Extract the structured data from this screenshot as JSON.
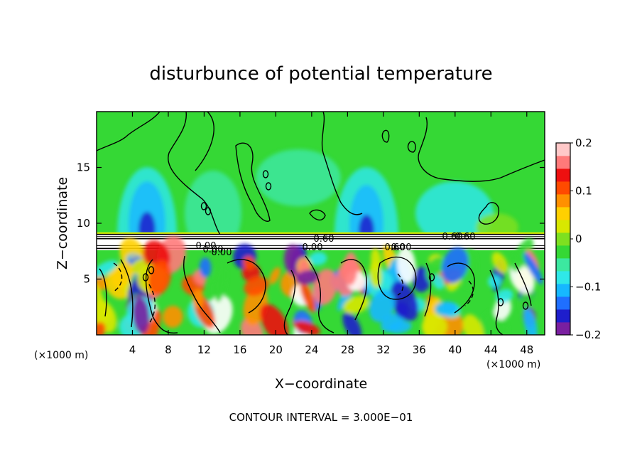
{
  "chart_data": {
    "type": "heatmap",
    "title": "disturbunce of potential temperature",
    "xlabel": "X−coordinate",
    "ylabel": "Z−coordinate",
    "x_unit_left": "(×1000 m)",
    "x_unit_right": "(×1000 m)",
    "xlim": [
      0,
      50
    ],
    "ylim": [
      0,
      20
    ],
    "x_ticks": [
      4,
      8,
      12,
      16,
      20,
      24,
      28,
      32,
      36,
      40,
      44,
      48
    ],
    "x_tick_labels": [
      "4",
      "8",
      "12",
      "16",
      "20",
      "24",
      "28",
      "32",
      "36",
      "40",
      "44",
      "48"
    ],
    "y_ticks": [
      5,
      10,
      15
    ],
    "y_tick_labels": [
      "5",
      "10",
      "15"
    ],
    "colorbar": {
      "range": [
        -0.2,
        0.2
      ],
      "tick_values": [
        0.2,
        0.1,
        0,
        -0.1,
        -0.2
      ],
      "tick_labels": [
        "0.2",
        "0.1",
        "0",
        "−0.1",
        "−0.2"
      ],
      "colors": [
        "#7a1fa0",
        "#1e1ecc",
        "#1f6fff",
        "#16b8ff",
        "#2fe8e8",
        "#3ce8a0",
        "#35d835",
        "#7ee020",
        "#d8e800",
        "#ffd000",
        "#ff9000",
        "#ff4a00",
        "#ee1010",
        "#ff7a7a",
        "#ffc8c8"
      ]
    },
    "contour_labels": [
      "0.00",
      "0.60",
      "0.60",
      "0.60",
      "0.00",
      "0.00",
      "0.00",
      "0.00",
      "0.60"
    ],
    "annotation": "CONTOUR INTERVAL = 3.000E−01",
    "grid": false,
    "legend": "right colorbar"
  }
}
